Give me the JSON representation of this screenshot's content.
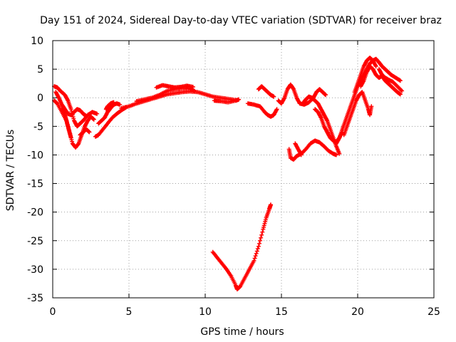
{
  "chart_data": {
    "type": "scatter",
    "title": "Day 151 of 2024, Sidereal Day-to-day VTEC variation (SDTVAR) for receiver braz",
    "xlabel": "GPS time / hours",
    "ylabel": "SDTVAR / TECUs",
    "xlim": [
      0,
      25
    ],
    "ylim": [
      -35,
      10
    ],
    "xticks": [
      0,
      5,
      10,
      15,
      20,
      25
    ],
    "yticks": [
      10,
      5,
      0,
      -5,
      -10,
      -15,
      -20,
      -25,
      -30,
      -35
    ],
    "grid": true,
    "marker": "+",
    "series": [
      {
        "name": "SDTVAR",
        "color": "#ff0000",
        "segments": [
          [
            [
              0.1,
              2.0
            ],
            [
              0.3,
              1.8
            ],
            [
              0.5,
              1.2
            ],
            [
              0.8,
              0.5
            ],
            [
              1.0,
              -0.5
            ],
            [
              1.2,
              -2.0
            ],
            [
              1.4,
              -4.0
            ],
            [
              1.6,
              -5.0
            ],
            [
              1.8,
              -4.5
            ],
            [
              2.0,
              -4.0
            ],
            [
              2.3,
              -3.0
            ],
            [
              2.6,
              -2.5
            ],
            [
              2.9,
              -2.8
            ]
          ],
          [
            [
              0.1,
              -0.5
            ],
            [
              0.3,
              -1.0
            ],
            [
              0.6,
              -2.5
            ],
            [
              0.9,
              -4.0
            ],
            [
              1.1,
              -6.0
            ],
            [
              1.3,
              -8.0
            ],
            [
              1.5,
              -8.7
            ],
            [
              1.7,
              -8.0
            ],
            [
              1.9,
              -6.5
            ],
            [
              2.1,
              -5.0
            ],
            [
              2.3,
              -4.0
            ],
            [
              2.5,
              -3.3
            ],
            [
              2.7,
              -3.8
            ]
          ],
          [
            [
              0.2,
              1.0
            ],
            [
              0.4,
              0.0
            ],
            [
              0.6,
              -1.2
            ],
            [
              0.8,
              -2.0
            ],
            [
              1.0,
              -2.8
            ],
            [
              1.2,
              -3.0
            ],
            [
              1.4,
              -2.5
            ],
            [
              1.6,
              -2.0
            ],
            [
              1.8,
              -2.2
            ],
            [
              2.0,
              -2.8
            ],
            [
              2.2,
              -3.2
            ]
          ],
          [
            [
              0.6,
              -2.0
            ],
            [
              0.8,
              -3.0
            ],
            [
              0.9,
              -4.0
            ],
            [
              1.0,
              -5.0
            ],
            [
              1.1,
              -6.0
            ],
            [
              1.2,
              -7.0
            ]
          ],
          [
            [
              1.8,
              -6.5
            ],
            [
              2.0,
              -6.0
            ],
            [
              2.2,
              -5.5
            ],
            [
              2.4,
              -6.0
            ]
          ],
          [
            [
              2.8,
              -6.8
            ],
            [
              3.0,
              -6.5
            ],
            [
              3.3,
              -5.5
            ],
            [
              3.6,
              -4.5
            ],
            [
              3.9,
              -3.5
            ],
            [
              4.2,
              -2.8
            ],
            [
              4.5,
              -2.2
            ],
            [
              4.8,
              -1.7
            ]
          ],
          [
            [
              3.0,
              -4.5
            ],
            [
              3.2,
              -4.0
            ],
            [
              3.4,
              -3.5
            ],
            [
              3.6,
              -2.5
            ],
            [
              3.8,
              -1.8
            ],
            [
              4.0,
              -1.2
            ],
            [
              4.2,
              -1.0
            ],
            [
              4.4,
              -1.2
            ]
          ],
          [
            [
              3.5,
              -2.0
            ],
            [
              3.6,
              -1.5
            ],
            [
              3.8,
              -1.0
            ],
            [
              4.0,
              -0.8
            ]
          ],
          [
            [
              4.5,
              -1.8
            ],
            [
              5.0,
              -1.5
            ],
            [
              5.5,
              -1.0
            ],
            [
              6.0,
              -0.6
            ],
            [
              6.5,
              -0.2
            ],
            [
              7.0,
              0.2
            ],
            [
              7.5,
              0.6
            ],
            [
              8.0,
              0.8
            ],
            [
              8.5,
              1.0
            ],
            [
              9.0,
              1.1
            ],
            [
              9.5,
              1.0
            ],
            [
              10.0,
              0.6
            ],
            [
              10.5,
              0.2
            ],
            [
              11.0,
              0.0
            ],
            [
              11.5,
              -0.2
            ],
            [
              12.0,
              -0.4
            ]
          ],
          [
            [
              5.5,
              -0.6
            ],
            [
              6.0,
              -0.3
            ],
            [
              6.5,
              0.0
            ],
            [
              7.0,
              0.5
            ],
            [
              7.5,
              1.2
            ],
            [
              8.0,
              1.5
            ],
            [
              8.5,
              1.7
            ],
            [
              9.0,
              1.6
            ],
            [
              9.3,
              1.2
            ]
          ],
          [
            [
              6.8,
              1.8
            ],
            [
              7.2,
              2.2
            ],
            [
              7.6,
              2.0
            ],
            [
              8.0,
              1.8
            ],
            [
              8.4,
              1.9
            ],
            [
              8.8,
              2.1
            ],
            [
              9.2,
              1.9
            ]
          ],
          [
            [
              10.6,
              -0.5
            ],
            [
              11.0,
              -0.6
            ],
            [
              11.5,
              -0.8
            ],
            [
              12.0,
              -0.5
            ],
            [
              12.2,
              -0.3
            ]
          ],
          [
            [
              12.8,
              -1.0
            ],
            [
              13.2,
              -1.2
            ],
            [
              13.6,
              -1.5
            ],
            [
              13.9,
              -2.5
            ],
            [
              14.1,
              -3.0
            ],
            [
              14.3,
              -3.3
            ],
            [
              14.5,
              -3.0
            ],
            [
              14.7,
              -2.0
            ]
          ],
          [
            [
              13.5,
              1.5
            ],
            [
              13.7,
              2.0
            ],
            [
              13.9,
              1.5
            ],
            [
              14.1,
              1.0
            ],
            [
              14.3,
              0.5
            ],
            [
              14.5,
              0.2
            ]
          ],
          [
            [
              10.5,
              -27.0
            ],
            [
              10.8,
              -28.0
            ],
            [
              11.1,
              -29.0
            ],
            [
              11.4,
              -30.0
            ],
            [
              11.7,
              -31.2
            ],
            [
              12.0,
              -32.8
            ],
            [
              12.1,
              -33.5
            ],
            [
              12.3,
              -33.0
            ],
            [
              12.6,
              -31.5
            ],
            [
              12.9,
              -30.0
            ],
            [
              13.2,
              -28.5
            ],
            [
              13.5,
              -26.0
            ],
            [
              13.8,
              -23.0
            ],
            [
              14.0,
              -21.0
            ],
            [
              14.2,
              -19.5
            ],
            [
              14.3,
              -18.7
            ]
          ],
          [
            [
              14.8,
              -0.5
            ],
            [
              15.0,
              -1.0
            ],
            [
              15.2,
              0.0
            ],
            [
              15.4,
              1.5
            ],
            [
              15.6,
              2.3
            ],
            [
              15.8,
              1.5
            ],
            [
              16.0,
              0.0
            ],
            [
              16.2,
              -1.0
            ],
            [
              16.5,
              -1.2
            ],
            [
              16.8,
              -0.8
            ],
            [
              17.1,
              0.0
            ],
            [
              17.3,
              1.0
            ],
            [
              17.5,
              1.5
            ],
            [
              17.7,
              1.0
            ],
            [
              17.9,
              0.5
            ]
          ],
          [
            [
              15.5,
              -9.0
            ],
            [
              15.6,
              -10.5
            ],
            [
              15.8,
              -10.8
            ],
            [
              16.0,
              -10.2
            ],
            [
              16.3,
              -9.8
            ],
            [
              16.6,
              -9.0
            ],
            [
              16.9,
              -8.0
            ],
            [
              17.2,
              -7.5
            ],
            [
              17.5,
              -7.8
            ],
            [
              17.8,
              -8.5
            ],
            [
              18.1,
              -9.3
            ],
            [
              18.4,
              -9.8
            ],
            [
              18.6,
              -10.0
            ]
          ],
          [
            [
              15.9,
              -8.0
            ],
            [
              16.1,
              -9.0
            ],
            [
              16.3,
              -10.0
            ]
          ],
          [
            [
              16.4,
              -1.0
            ],
            [
              16.6,
              -0.3
            ],
            [
              16.8,
              0.2
            ],
            [
              17.0,
              0.0
            ],
            [
              17.2,
              -0.5
            ],
            [
              17.4,
              -1.0
            ],
            [
              17.6,
              -2.0
            ],
            [
              17.8,
              -3.0
            ],
            [
              18.0,
              -4.0
            ],
            [
              18.2,
              -5.5
            ],
            [
              18.4,
              -7.0
            ],
            [
              18.6,
              -8.5
            ],
            [
              18.8,
              -9.8
            ]
          ],
          [
            [
              17.2,
              -2.0
            ],
            [
              17.4,
              -2.5
            ],
            [
              17.6,
              -3.5
            ],
            [
              17.8,
              -5.0
            ],
            [
              18.0,
              -6.0
            ],
            [
              18.2,
              -7.0
            ],
            [
              18.4,
              -7.5
            ],
            [
              18.6,
              -7.8
            ],
            [
              18.8,
              -7.0
            ],
            [
              19.0,
              -6.0
            ]
          ],
          [
            [
              18.6,
              -8.0
            ],
            [
              18.8,
              -7.0
            ],
            [
              19.0,
              -5.5
            ],
            [
              19.2,
              -4.0
            ],
            [
              19.4,
              -2.5
            ],
            [
              19.6,
              -1.0
            ],
            [
              19.8,
              0.5
            ],
            [
              20.0,
              2.0
            ],
            [
              20.2,
              3.0
            ],
            [
              20.4,
              4.0
            ],
            [
              20.6,
              5.0
            ],
            [
              20.8,
              6.0
            ],
            [
              21.0,
              6.5
            ],
            [
              21.2,
              6.8
            ],
            [
              21.4,
              6.2
            ],
            [
              21.6,
              5.5
            ],
            [
              21.8,
              5.0
            ],
            [
              22.0,
              4.5
            ],
            [
              22.2,
              4.0
            ],
            [
              22.5,
              3.5
            ],
            [
              22.8,
              3.0
            ]
          ],
          [
            [
              19.1,
              -6.5
            ],
            [
              19.3,
              -5.0
            ],
            [
              19.5,
              -3.5
            ],
            [
              19.7,
              -2.0
            ],
            [
              19.9,
              -0.5
            ],
            [
              20.1,
              0.5
            ],
            [
              20.3,
              1.0
            ],
            [
              20.5,
              -0.5
            ],
            [
              20.7,
              -2.0
            ],
            [
              20.8,
              -3.0
            ],
            [
              20.9,
              -1.5
            ]
          ],
          [
            [
              19.8,
              1.0
            ],
            [
              20.0,
              2.5
            ],
            [
              20.2,
              4.0
            ],
            [
              20.4,
              5.5
            ],
            [
              20.6,
              6.5
            ],
            [
              20.8,
              7.0
            ],
            [
              21.0,
              6.5
            ],
            [
              21.2,
              5.5
            ]
          ],
          [
            [
              20.2,
              2.0
            ],
            [
              20.4,
              3.0
            ],
            [
              20.6,
              4.5
            ],
            [
              20.8,
              5.5
            ],
            [
              21.0,
              5.0
            ],
            [
              21.2,
              4.0
            ],
            [
              21.4,
              3.5
            ],
            [
              21.6,
              3.8
            ],
            [
              21.8,
              3.0
            ],
            [
              22.0,
              2.5
            ],
            [
              22.2,
              2.0
            ],
            [
              22.4,
              1.5
            ],
            [
              22.6,
              1.0
            ],
            [
              22.8,
              0.6
            ]
          ],
          [
            [
              21.4,
              5.0
            ],
            [
              21.6,
              4.0
            ],
            [
              21.8,
              3.5
            ],
            [
              22.0,
              3.2
            ],
            [
              22.3,
              2.8
            ],
            [
              22.6,
              2.0
            ],
            [
              22.9,
              1.2
            ]
          ]
        ]
      }
    ]
  }
}
